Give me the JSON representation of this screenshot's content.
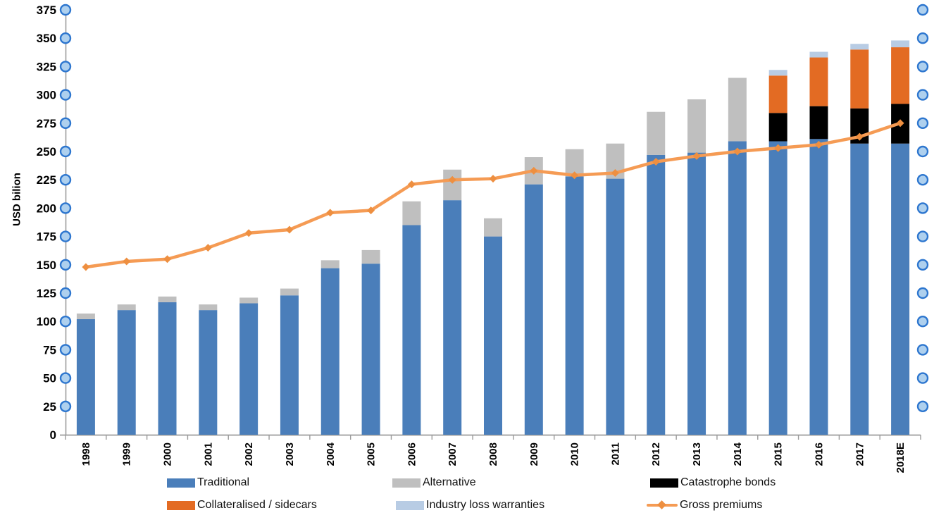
{
  "chart_data": {
    "type": "combo_stacked_bar_line",
    "title": "",
    "ylabel": "USD bilion",
    "ylim": [
      0,
      375
    ],
    "ytick_step": 25,
    "ytick_labels": [
      "0",
      "25",
      "50",
      "75",
      "100",
      "125",
      "150",
      "175",
      "200",
      "225",
      "250",
      "275",
      "300",
      "325",
      "350",
      "375"
    ],
    "categories": [
      "1998",
      "1999",
      "2000",
      "2001",
      "2002",
      "2003",
      "2004",
      "2005",
      "2006",
      "2007",
      "2008",
      "2009",
      "2010",
      "2011",
      "2012",
      "2013",
      "2014",
      "2015",
      "2016",
      "2017",
      "2018E"
    ],
    "stacked_bar_series": [
      {
        "name": "Traditional",
        "color": "#4a7eba",
        "values": [
          102,
          110,
          117,
          110,
          116,
          123,
          147,
          151,
          185,
          207,
          175,
          221,
          228,
          226,
          247,
          249,
          259,
          259,
          261,
          257,
          257
        ]
      },
      {
        "name": "Alternative",
        "color": "#bfbfbf",
        "values": [
          5,
          5,
          5,
          5,
          5,
          6,
          7,
          12,
          21,
          27,
          16,
          24,
          24,
          31,
          38,
          47,
          56,
          0,
          0,
          0,
          0
        ]
      },
      {
        "name": "Catastrophe bonds",
        "color": "#000000",
        "values": [
          0,
          0,
          0,
          0,
          0,
          0,
          0,
          0,
          0,
          0,
          0,
          0,
          0,
          0,
          0,
          0,
          0,
          25,
          29,
          31,
          35
        ]
      },
      {
        "name": "Collateralised / sidecars",
        "color": "#e36b23",
        "values": [
          0,
          0,
          0,
          0,
          0,
          0,
          0,
          0,
          0,
          0,
          0,
          0,
          0,
          0,
          0,
          0,
          0,
          33,
          43,
          52,
          50
        ]
      },
      {
        "name": "Industry loss warranties",
        "color": "#b8cce4",
        "values": [
          0,
          0,
          0,
          0,
          0,
          0,
          0,
          0,
          0,
          0,
          0,
          0,
          0,
          0,
          0,
          0,
          0,
          5,
          5,
          5,
          6
        ]
      }
    ],
    "line_series": {
      "name": "Gross premiums",
      "color": "#f59b54",
      "marker_color": "#ee8f40",
      "marker": "diamond",
      "values": [
        148,
        153,
        155,
        165,
        178,
        181,
        196,
        198,
        221,
        225,
        226,
        233,
        229,
        231,
        241,
        246,
        250,
        253,
        256,
        263,
        275
      ]
    },
    "legend_position": "bottom",
    "grid": "off",
    "axis_color": "#9b9b9b",
    "handle_stroke_color": "#2d76cf",
    "handle_fill_color": "#aed0ee",
    "background": "#ffffff"
  }
}
